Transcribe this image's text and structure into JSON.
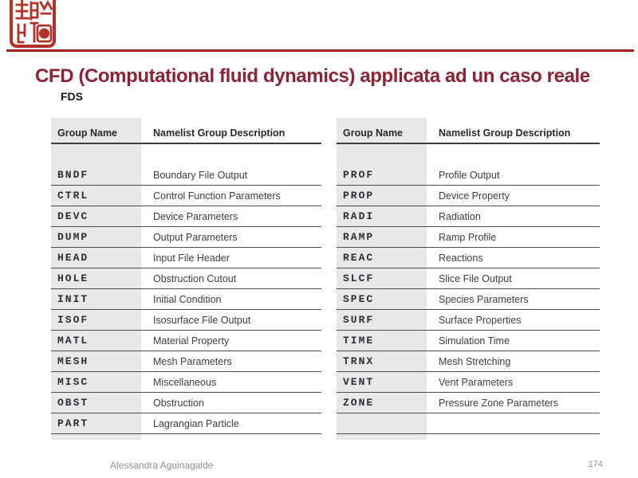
{
  "slide": {
    "title": "CFD (Computational fluid dynamics) applicata ad un caso reale",
    "subtitle": "FDS",
    "footer": {
      "author": "Alessandra Aguinagalde",
      "page_number": "174"
    }
  },
  "icons": {
    "seal": "red-chinese-seal-stamp"
  },
  "colors": {
    "title_maroon": "#8C2333",
    "rule_red": "#A6201E",
    "seal_red": "#B23227",
    "table_band_gray": "#e8e8e8",
    "table_line_dark": "#4b4b4f",
    "footer_gray": "#8f8f8f",
    "background": "#ffffff"
  },
  "table": {
    "header": {
      "name": "Group Name",
      "description": "Namelist Group Description"
    },
    "left_rows": [
      {
        "name": "BNDF",
        "description": "Boundary File Output"
      },
      {
        "name": "CTRL",
        "description": "Control Function Parameters"
      },
      {
        "name": "DEVC",
        "description": "Device Parameters"
      },
      {
        "name": "DUMP",
        "description": "Output Parameters"
      },
      {
        "name": "HEAD",
        "description": "Input File Header"
      },
      {
        "name": "HOLE",
        "description": "Obstruction Cutout"
      },
      {
        "name": "INIT",
        "description": "Initial Condition"
      },
      {
        "name": "ISOF",
        "description": "Isosurface File Output"
      },
      {
        "name": "MATL",
        "description": "Material Property"
      },
      {
        "name": "MESH",
        "description": "Mesh Parameters"
      },
      {
        "name": "MISC",
        "description": "Miscellaneous"
      },
      {
        "name": "OBST",
        "description": "Obstruction"
      },
      {
        "name": "PART",
        "description": "Lagrangian Particle"
      }
    ],
    "right_rows": [
      {
        "name": "PROF",
        "description": "Profile Output"
      },
      {
        "name": "PROP",
        "description": "Device Property"
      },
      {
        "name": "RADI",
        "description": "Radiation"
      },
      {
        "name": "RAMP",
        "description": "Ramp Profile"
      },
      {
        "name": "REAC",
        "description": "Reactions"
      },
      {
        "name": "SLCF",
        "description": "Slice File Output"
      },
      {
        "name": "SPEC",
        "description": "Species Parameters"
      },
      {
        "name": "SURF",
        "description": "Surface Properties"
      },
      {
        "name": "TIME",
        "description": "Simulation Time"
      },
      {
        "name": "TRNX",
        "description": "Mesh Stretching"
      },
      {
        "name": "VENT",
        "description": "Vent Parameters"
      },
      {
        "name": "ZONE",
        "description": "Pressure Zone Parameters"
      },
      {
        "name": "",
        "description": ""
      }
    ]
  }
}
